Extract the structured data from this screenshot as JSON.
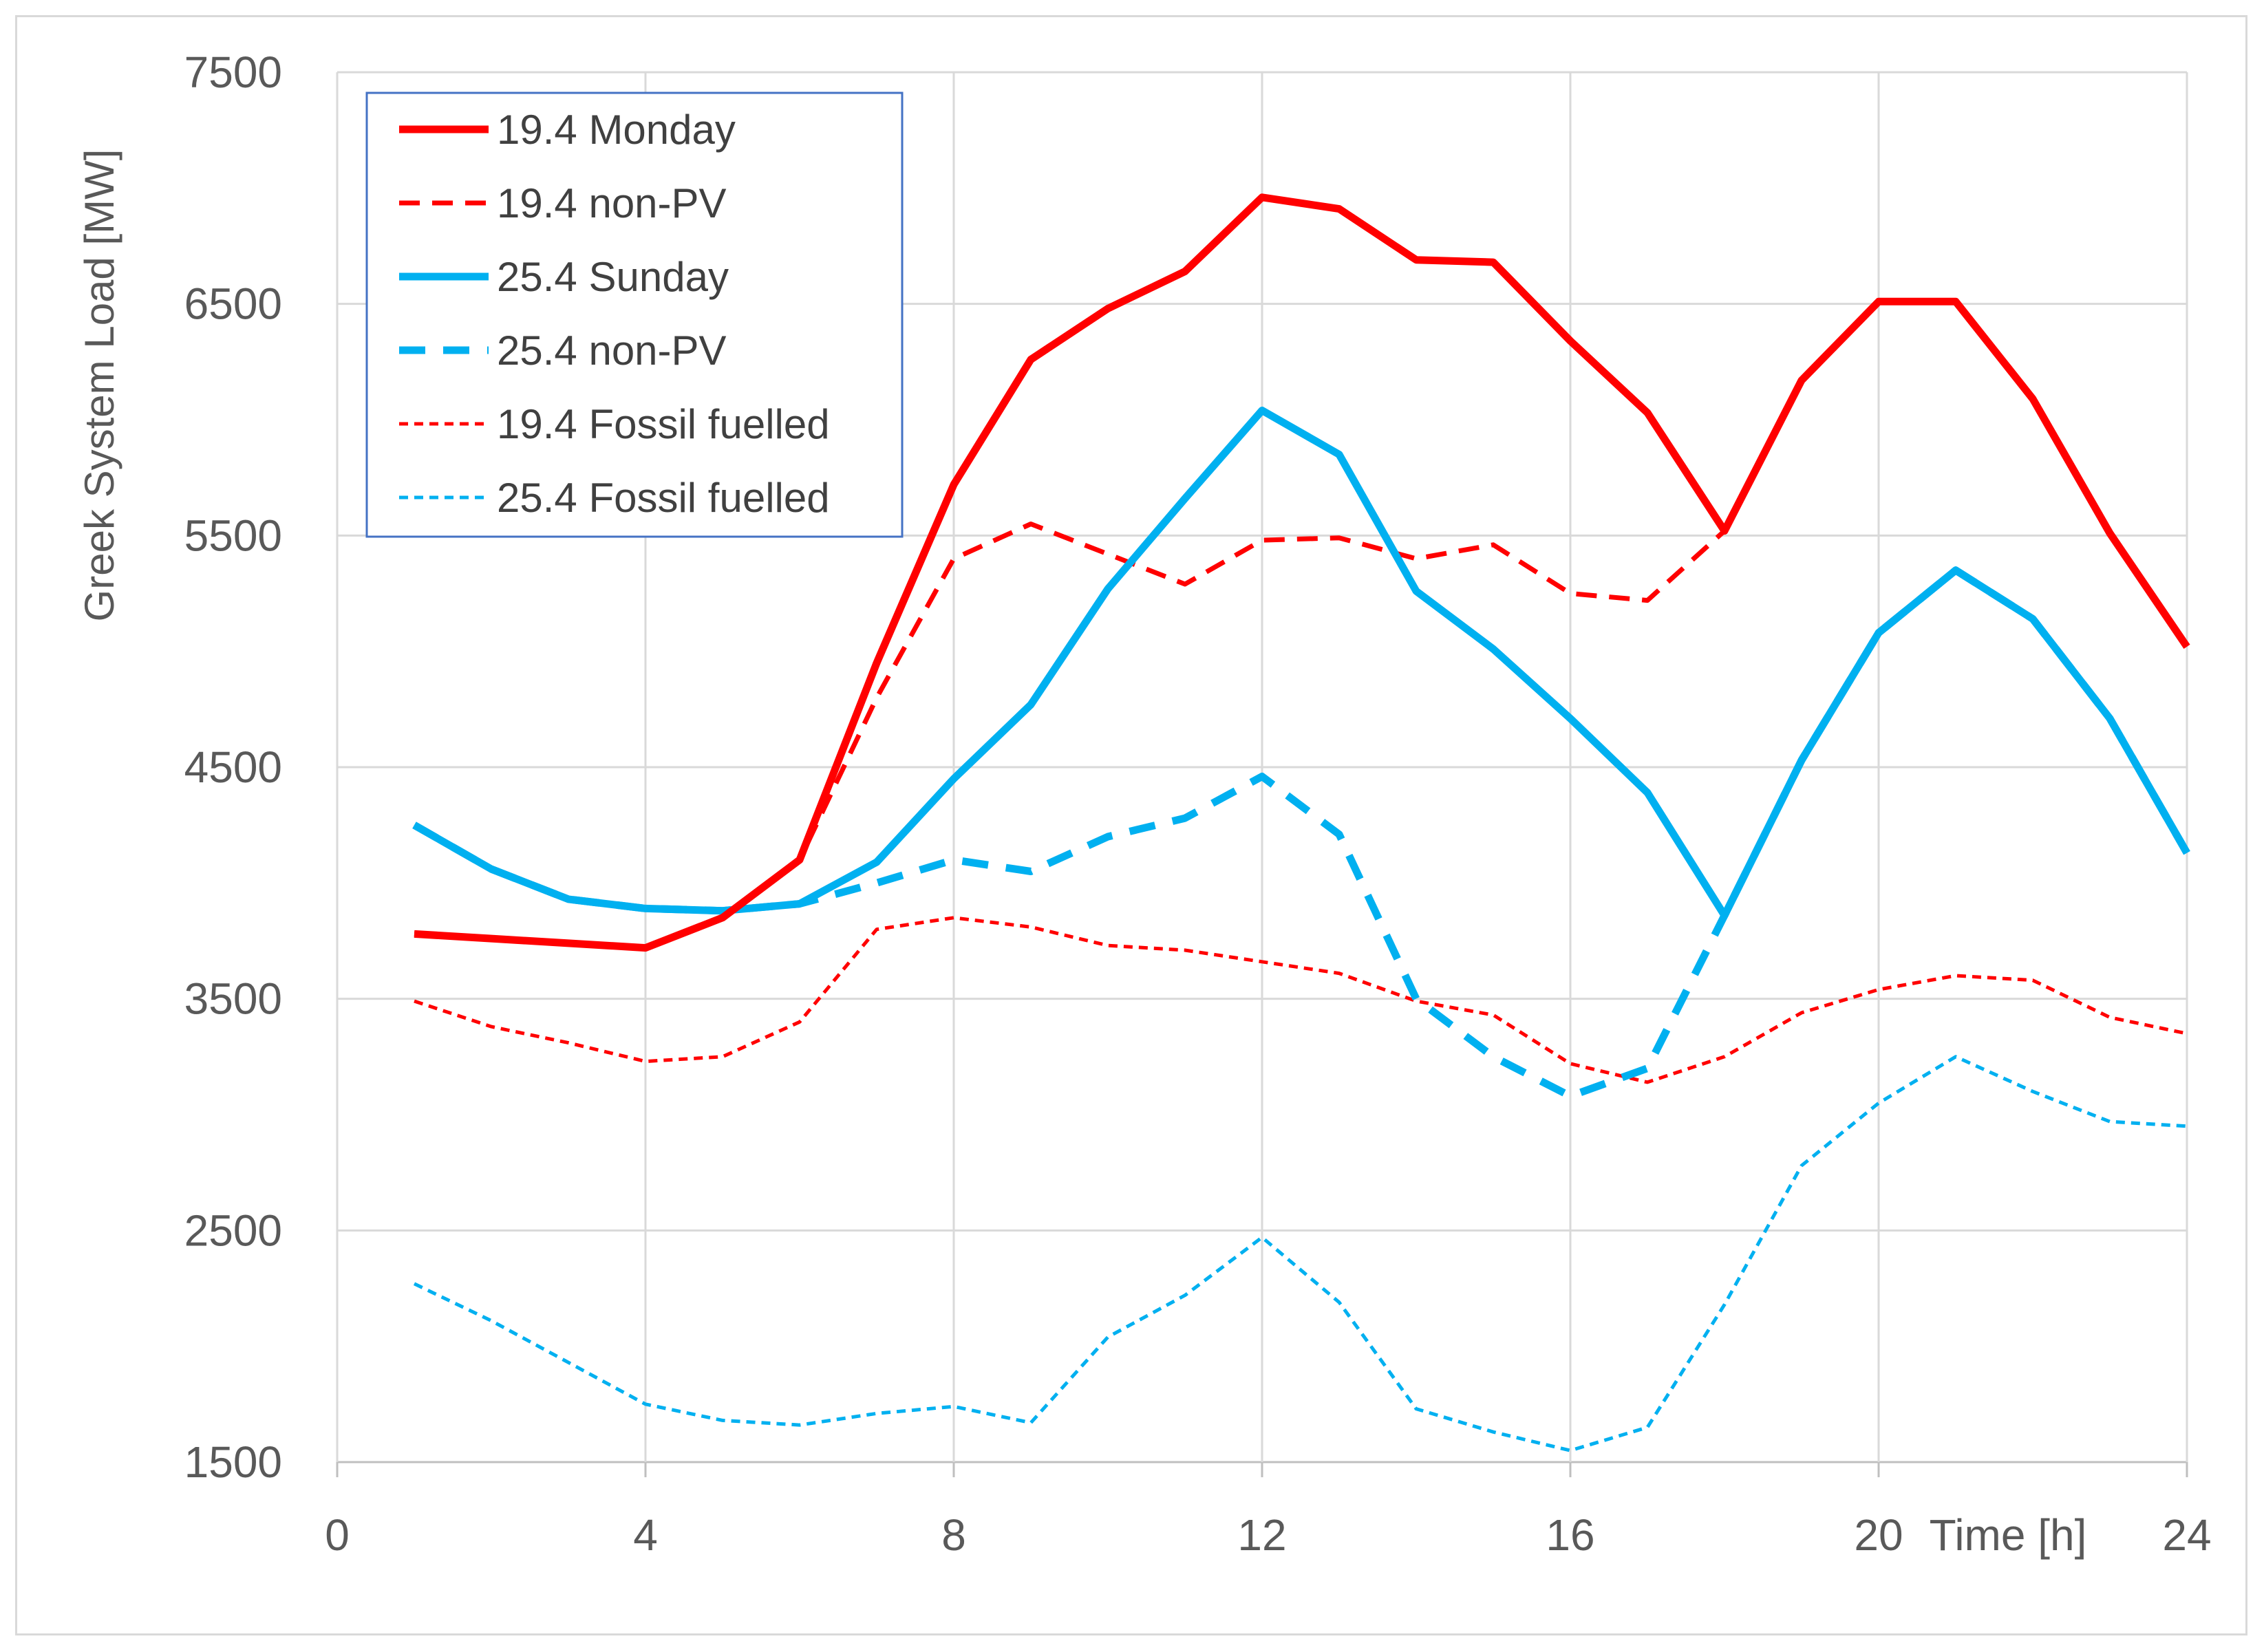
{
  "chart_data": {
    "type": "line",
    "title": "",
    "xlabel": "Time [h]",
    "ylabel": "Greek System Load [MW]",
    "xlim": [
      0,
      24
    ],
    "ylim": [
      1500,
      7500
    ],
    "xticks": [
      0,
      4,
      8,
      12,
      16,
      20,
      24
    ],
    "yticks": [
      1500,
      2500,
      3500,
      4500,
      5500,
      6500,
      7500
    ],
    "grid": true,
    "legend_position": "top-left",
    "x": [
      1,
      2,
      3,
      4,
      5,
      6,
      7,
      8,
      9,
      10,
      11,
      12,
      13,
      14,
      15,
      16,
      17,
      18,
      19,
      20,
      21,
      22,
      23,
      24
    ],
    "series": [
      {
        "name": "19.4 Monday",
        "color": "#ff0000",
        "style": "solid-thick",
        "values": [
          3780,
          3760,
          3740,
          3720,
          3850,
          4100,
          4950,
          5720,
          6260,
          6480,
          6640,
          6960,
          6910,
          6690,
          6680,
          6340,
          6030,
          5520,
          6170,
          6510,
          6510,
          6090,
          5510,
          5020
        ]
      },
      {
        "name": "19.4 non-PV",
        "color": "#ff0000",
        "style": "dashed-medium",
        "values": [
          3780,
          3760,
          3740,
          3720,
          3850,
          4100,
          4800,
          5400,
          5550,
          5420,
          5290,
          5480,
          5490,
          5400,
          5460,
          5250,
          5220,
          5520,
          6170,
          6510,
          6510,
          6090,
          5510,
          5020
        ]
      },
      {
        "name": "25.4 Sunday",
        "color": "#00b0f0",
        "style": "solid-thick",
        "values": [
          4250,
          4060,
          3930,
          3890,
          3880,
          3910,
          4090,
          4450,
          4770,
          5270,
          5660,
          6040,
          5850,
          5260,
          5010,
          4710,
          4390,
          3860,
          4530,
          5080,
          5350,
          5140,
          4710,
          4130
        ]
      },
      {
        "name": "25.4 non-PV",
        "color": "#00b0f0",
        "style": "dashed-thick",
        "values": [
          4250,
          4060,
          3930,
          3890,
          3880,
          3910,
          4000,
          4100,
          4050,
          4200,
          4280,
          4460,
          4210,
          3500,
          3250,
          3080,
          3200,
          3860,
          4530,
          5080,
          5350,
          5140,
          4710,
          4130
        ]
      },
      {
        "name": "19.4 Fossil fuelled",
        "color": "#ff0000",
        "style": "dotted-thin",
        "values": [
          3490,
          3380,
          3310,
          3230,
          3250,
          3400,
          3800,
          3850,
          3810,
          3730,
          3710,
          3660,
          3610,
          3490,
          3430,
          3220,
          3140,
          3250,
          3440,
          3540,
          3600,
          3580,
          3420,
          3350
        ]
      },
      {
        "name": "25.4 Fossil fuelled",
        "color": "#00b0f0",
        "style": "dotted-thin",
        "values": [
          2270,
          2110,
          1930,
          1750,
          1680,
          1660,
          1710,
          1740,
          1670,
          2040,
          2220,
          2470,
          2190,
          1730,
          1630,
          1550,
          1650,
          2180,
          2780,
          3050,
          3250,
          3100,
          2970,
          2950
        ]
      }
    ]
  }
}
